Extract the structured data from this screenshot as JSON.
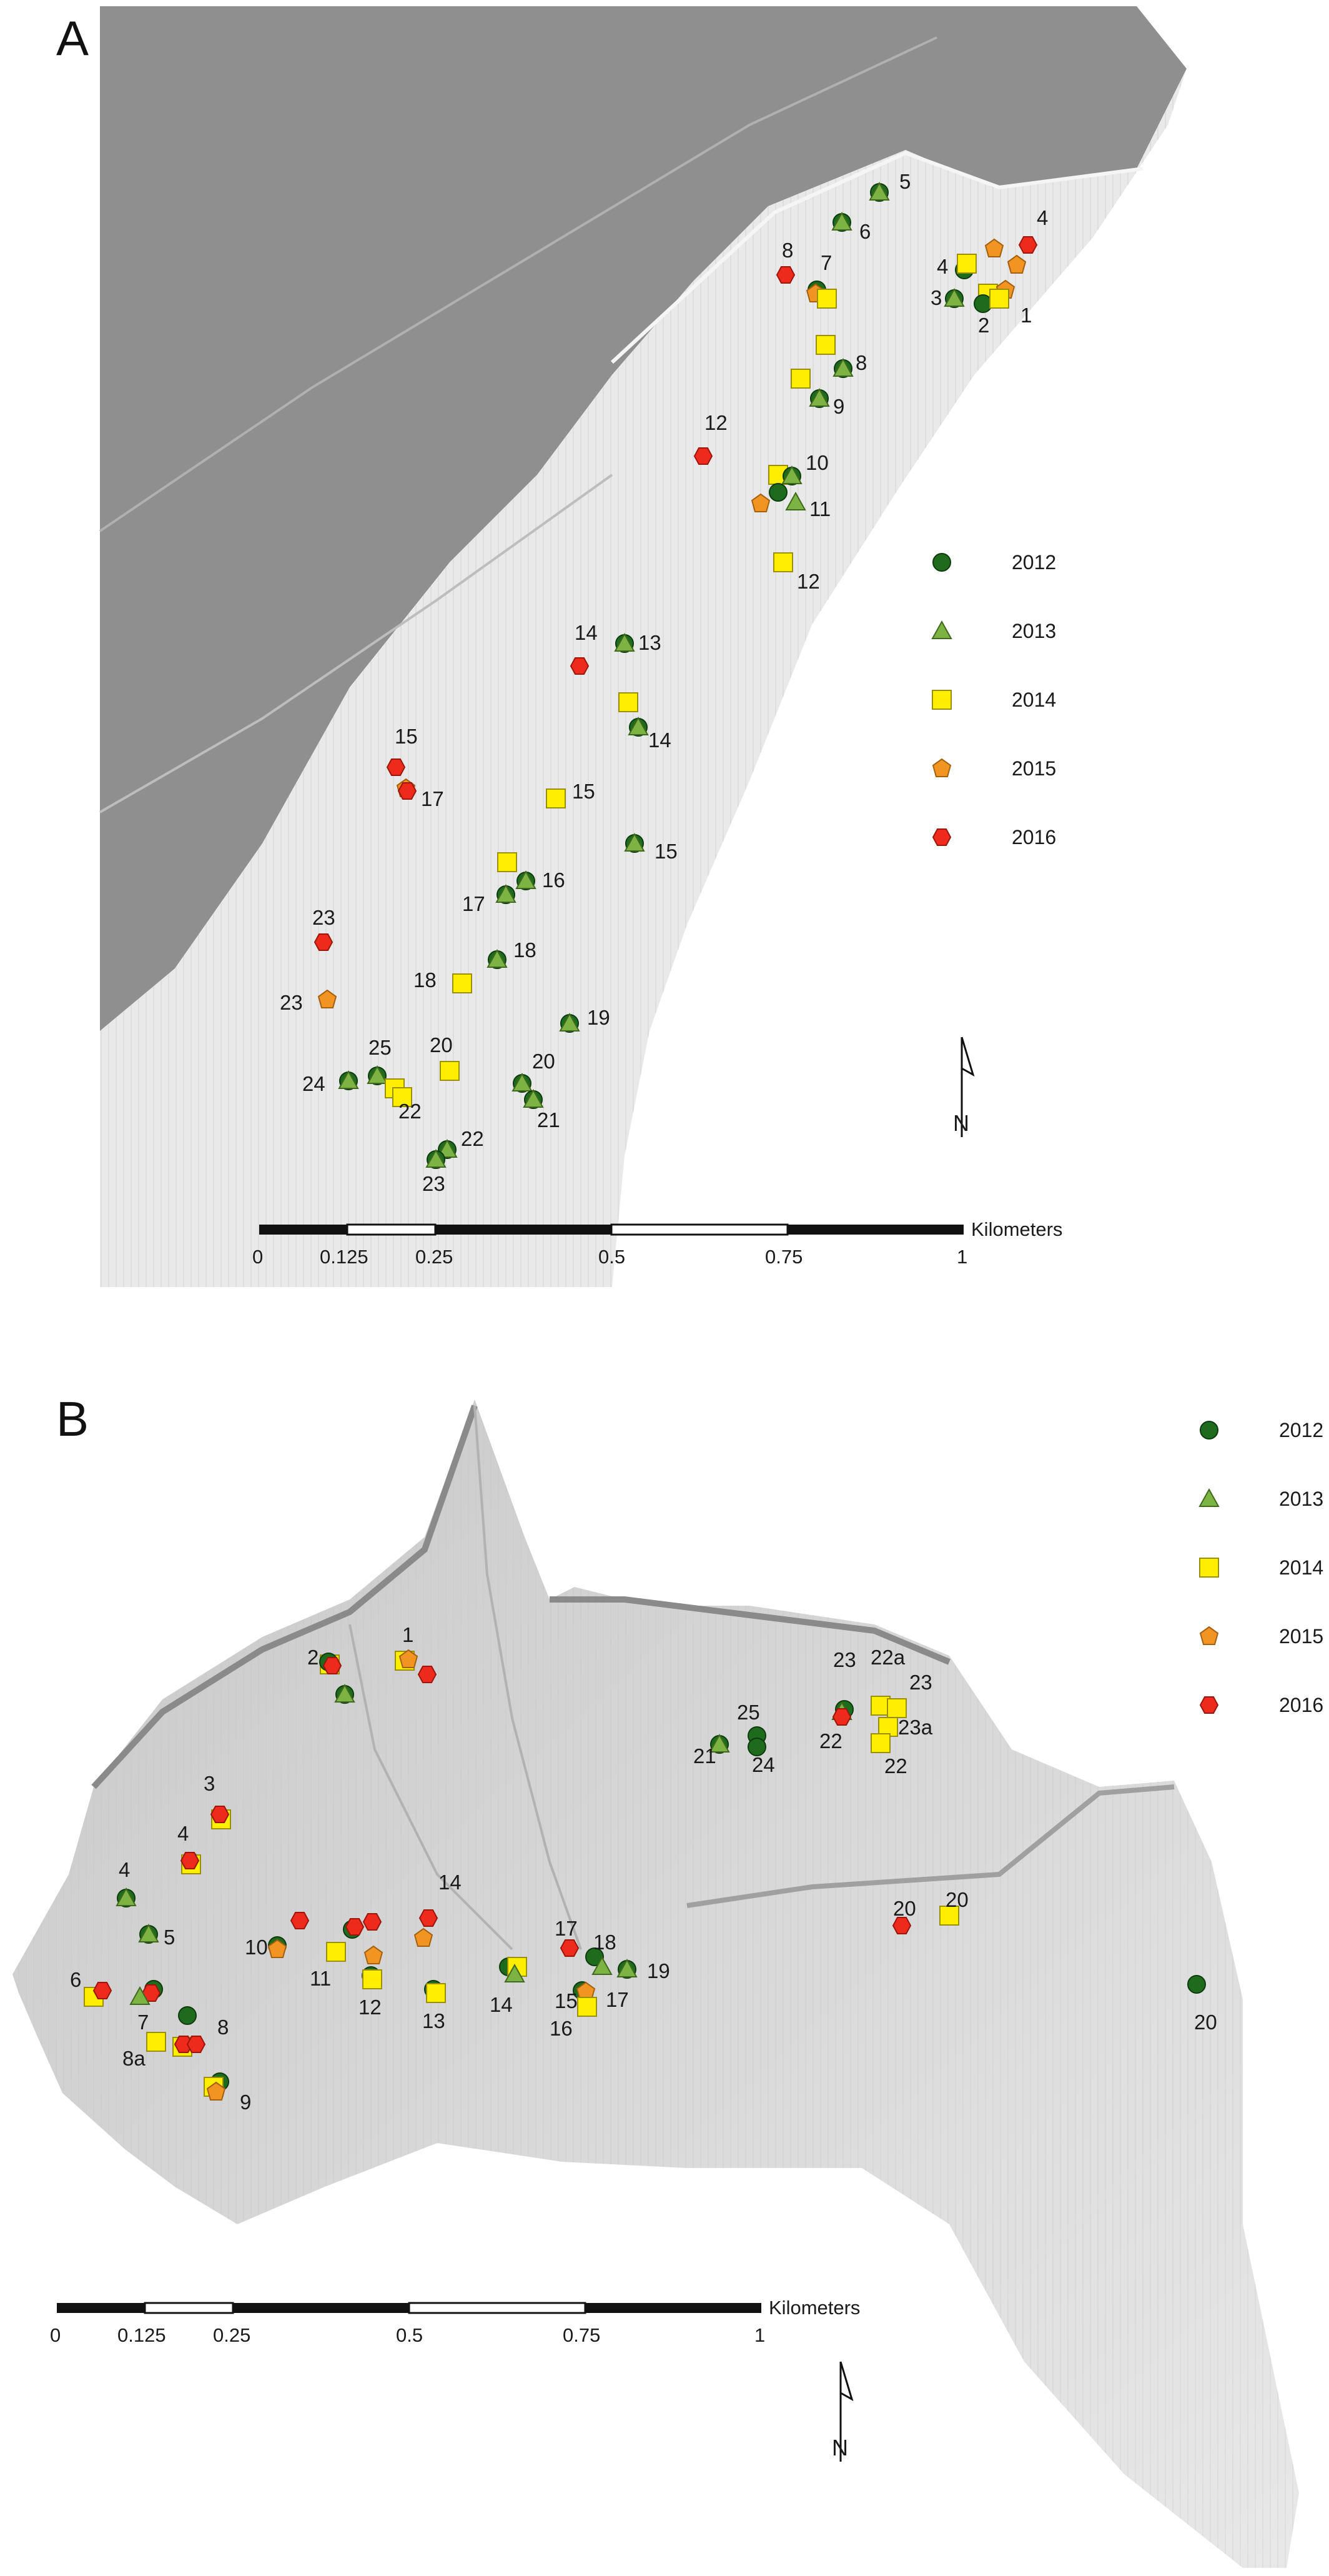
{
  "colors": {
    "y2012": "#1e6b1e",
    "y2013": "#7cb342",
    "y2014": "#ffee00",
    "y2015": "#f29422",
    "y2016": "#ee2a1c"
  },
  "legend": {
    "items": [
      {
        "label": "2012",
        "symbol": "circle"
      },
      {
        "label": "2013",
        "symbol": "triangle"
      },
      {
        "label": "2014",
        "symbol": "square"
      },
      {
        "label": "2015",
        "symbol": "pentagon"
      },
      {
        "label": "2016",
        "symbol": "hexagon"
      }
    ]
  },
  "scalebar": {
    "unit": "Kilometers",
    "ticks": [
      "0",
      "0.125",
      "0.25",
      "0.5",
      "0.75",
      "1"
    ]
  },
  "north_arrow": "N",
  "panelA": {
    "letter": "A",
    "labels": [
      "1",
      "2",
      "3",
      "4",
      "4",
      "5",
      "6",
      "7",
      "8",
      "8",
      "9",
      "10",
      "11",
      "12",
      "12",
      "13",
      "14",
      "14",
      "15",
      "15",
      "15",
      "16",
      "17",
      "17",
      "18",
      "18",
      "19",
      "20",
      "20",
      "21",
      "22",
      "22",
      "23",
      "23",
      "23",
      "24",
      "25"
    ]
  },
  "panelB": {
    "letter": "B",
    "labels": [
      "1",
      "2",
      "3",
      "4",
      "4",
      "5",
      "6",
      "7",
      "8",
      "8a",
      "9",
      "10",
      "11",
      "12",
      "13",
      "14",
      "14",
      "15",
      "16",
      "17",
      "17",
      "18",
      "19",
      "20",
      "20",
      "20",
      "21",
      "22",
      "22",
      "22a",
      "23",
      "23",
      "23a",
      "24",
      "25"
    ]
  }
}
